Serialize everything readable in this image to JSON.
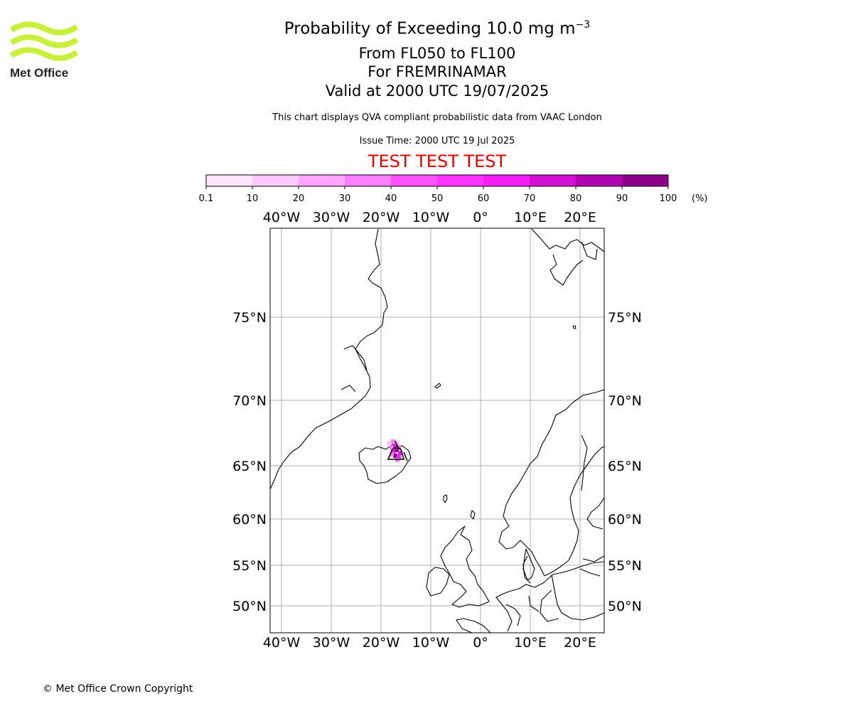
{
  "logo": {
    "text": "Met Office",
    "color": "#c8f03a"
  },
  "header": {
    "title_main": "Probability of Exceeding 10.0 mg m",
    "title_exponent": "−3",
    "level_range": "From FL050 to FL100",
    "volcano_line": "For FREMRINAMAR",
    "valid_time": "Valid at 2000 UTC 19/07/2025",
    "description": "This chart displays QVA compliant probabilistic data from VAAC London",
    "issue_time": "Issue Time: 2000 UTC 19 Jul 2025",
    "test_banner": "TEST TEST TEST",
    "test_color": "#e00000"
  },
  "colorbar": {
    "tick_labels": [
      "0.1",
      "10",
      "20",
      "30",
      "40",
      "50",
      "60",
      "70",
      "80",
      "90",
      "100"
    ],
    "unit": "(%)",
    "colors": [
      "#ffe6ff",
      "#ffc8ff",
      "#ffa5ff",
      "#ff7dff",
      "#ff50ff",
      "#ff32ff",
      "#f51ef5",
      "#d20fd2",
      "#af05af",
      "#8c008c",
      "#640064"
    ]
  },
  "map": {
    "lon_labels": [
      "40°W",
      "30°W",
      "20°W",
      "10°W",
      "0°",
      "10°E",
      "20°E"
    ],
    "lat_labels": [
      "75°N",
      "70°N",
      "65°N",
      "60°N",
      "55°N",
      "50°N"
    ],
    "volcano_name": "FREMRINAMAR",
    "plume_probability_percent": [
      10,
      30,
      60,
      90
    ]
  },
  "footer": {
    "copyright": "© Met Office Crown Copyright"
  }
}
